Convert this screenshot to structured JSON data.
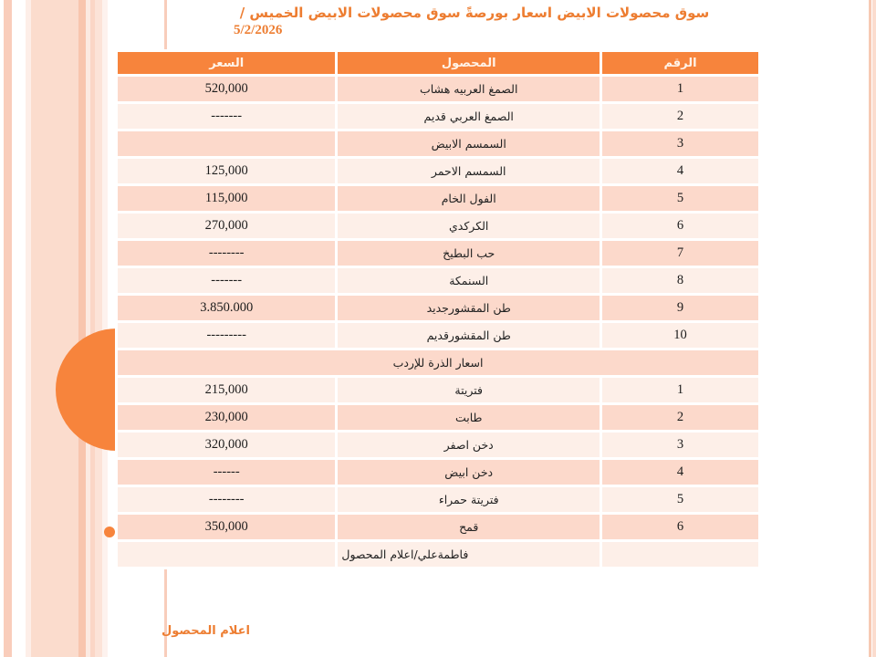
{
  "slide": {
    "title_line1": "سوق محصولات الابيض  اسعار بورصةً سوق محصولات الابيض الخميس /",
    "title_line2": "5/2/2026",
    "bottom_note": "اعلام المحصول"
  },
  "table": {
    "headers": {
      "number": "الرقم",
      "product": "المحصول",
      "price": "السعر"
    },
    "section1_rows": [
      {
        "num": "1",
        "product": "الصمغ العربيه هشاب",
        "price": "520,000"
      },
      {
        "num": "2",
        "product": "الصمغ العربي قديم",
        "price": "-------"
      },
      {
        "num": "3",
        "product": "السمسم الابيض",
        "price": ""
      },
      {
        "num": "4",
        "product": "السمسم الاحمر",
        "price": "125,000"
      },
      {
        "num": "5",
        "product": "الفول الخام",
        "price": "115,000"
      },
      {
        "num": "6",
        "product": "الكركدي",
        "price": "270,000"
      },
      {
        "num": "7",
        "product": "حب البطيخ",
        "price": "--------"
      },
      {
        "num": "8",
        "product": "السنمكة",
        "price": "-------"
      },
      {
        "num": "9",
        "product": "طن المقشورجديد",
        "price": "3.850.000"
      },
      {
        "num": "10",
        "product": "طن المقشورقديم",
        "price": "---------"
      }
    ],
    "section2_title": "اسعار الذرة للإردب",
    "section2_rows": [
      {
        "num": "1",
        "product": "فتريتة",
        "price": "215,000"
      },
      {
        "num": "2",
        "product": "طابت",
        "price": "230,000"
      },
      {
        "num": "3",
        "product": "دخن اصفر",
        "price": "320,000"
      },
      {
        "num": "4",
        "product": "دخن ابيض",
        "price": "------"
      },
      {
        "num": "5",
        "product": "فتريتة حمراء",
        "price": "--------"
      },
      {
        "num": "6",
        "product": "قمح",
        "price": "350,000"
      }
    ],
    "footer_row_text": "فاطمةعلي/اعلام المحصول"
  },
  "colors": {
    "accent_orange": "#F7843C",
    "title_orange": "#ED7D31",
    "band_dark": "#FCD9CB",
    "band_light": "#FDEFE8"
  }
}
